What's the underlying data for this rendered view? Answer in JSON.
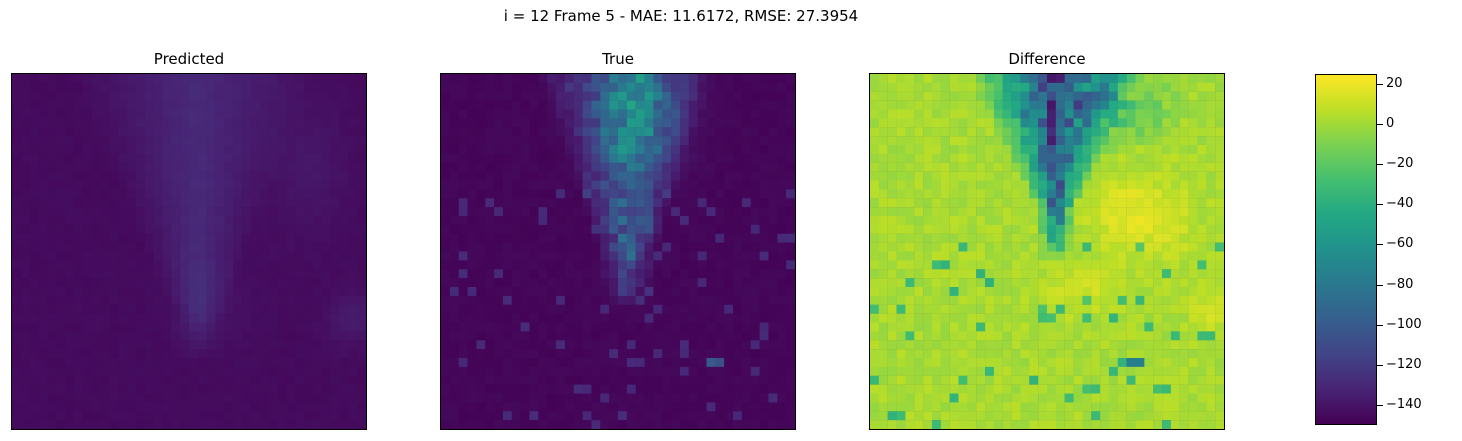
{
  "figure": {
    "title": "i = 12 Frame 5 - MAE: 11.6172, RMSE: 27.3954"
  },
  "chart_data": [
    {
      "type": "heatmap",
      "title": "Predicted",
      "xlabel": "",
      "ylabel": "",
      "grid": false,
      "colormap": "viridis",
      "vmin": -150,
      "vmax": 25,
      "description_of_values": "mostly about -145 with a faint inverted V-shaped plume of about -130 from the top centre down towards the lower middle",
      "regions": [
        {
          "area": "background",
          "value": -145
        },
        {
          "area": "central V plume",
          "value": -130
        },
        {
          "area": "right edge lower third",
          "value": -125
        }
      ]
    },
    {
      "type": "heatmap",
      "title": "True",
      "xlabel": "",
      "ylabel": "",
      "grid": false,
      "colormap": "viridis",
      "vmin": -150,
      "vmax": 25,
      "description_of_values": "mostly about -148 with a brighter noisy plume in the upper centre reaching about -80",
      "regions": [
        {
          "area": "background",
          "value": -148
        },
        {
          "area": "upper centre plume",
          "value": -90
        },
        {
          "area": "isolated spot lower right",
          "value": -105
        }
      ]
    },
    {
      "type": "heatmap",
      "title": "Difference",
      "xlabel": "",
      "ylabel": "",
      "grid": false,
      "colormap": "viridis",
      "vmin": -150,
      "vmax": 25,
      "description_of_values": "Predicted minus True: mostly about 0, a dark region down to about -140 at the upper centre, bright patches around +20 in the middle right",
      "regions": [
        {
          "area": "background",
          "value": 0
        },
        {
          "area": "upper centre",
          "value": -110
        },
        {
          "area": "middle right bright patch",
          "value": 20
        }
      ]
    }
  ],
  "colorbar": {
    "colormap": "viridis",
    "range": [
      -150,
      25
    ],
    "ticks": [
      "20",
      "0",
      "−20",
      "−40",
      "−60",
      "−80",
      "−100",
      "−120",
      "−140"
    ],
    "tick_values": [
      20,
      0,
      -20,
      -40,
      -60,
      -80,
      -100,
      -120,
      -140
    ],
    "colors": [
      "#440154",
      "#482475",
      "#414487",
      "#355f8d",
      "#2a788e",
      "#21918c",
      "#22a884",
      "#44bf70",
      "#7ad151",
      "#bddf26",
      "#fde725"
    ]
  }
}
